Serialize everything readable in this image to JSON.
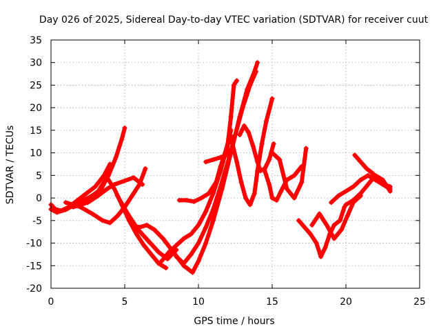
{
  "chart_data": {
    "type": "scatter",
    "title": "Day 026 of 2025, Sidereal Day-to-day VTEC variation (SDTVAR) for receiver cuut",
    "xlabel": "GPS time / hours",
    "ylabel": "SDTVAR / TECUs",
    "xlim": [
      0,
      25
    ],
    "ylim": [
      -20,
      35
    ],
    "xticks": [
      0,
      5,
      10,
      15,
      20,
      25
    ],
    "yticks": [
      -20,
      -15,
      -10,
      -5,
      0,
      5,
      10,
      15,
      20,
      25,
      30,
      35
    ],
    "grid": true,
    "marker": "+",
    "color": "#ff0000",
    "series": [
      {
        "name": "trace-1",
        "x": [
          0,
          0.3,
          0.7,
          1.2,
          1.8,
          2.4,
          3.0,
          3.6,
          4.0
        ],
        "y": [
          -1.5,
          -2.5,
          -2.8,
          -2.0,
          -0.5,
          1.0,
          2.5,
          5.0,
          7.5
        ]
      },
      {
        "name": "trace-2",
        "x": [
          0,
          0.4,
          1.0,
          1.6,
          2.2,
          2.8,
          3.4,
          3.9,
          4.4,
          4.8,
          5.0
        ],
        "y": [
          -2.5,
          -3.2,
          -2.6,
          -1.5,
          -0.5,
          0.5,
          2.0,
          5.0,
          9.0,
          13.0,
          15.5
        ]
      },
      {
        "name": "trace-3",
        "x": [
          1.0,
          2.0,
          2.8,
          3.5,
          4.0,
          4.5,
          5.0,
          5.5,
          6.0,
          6.4
        ],
        "y": [
          -1.0,
          -2.0,
          -3.5,
          -5.0,
          -5.5,
          -4.0,
          -2.0,
          0.5,
          3.0,
          6.5
        ]
      },
      {
        "name": "trace-4",
        "x": [
          1.5,
          2.5,
          3.2,
          3.8,
          4.3,
          5.0,
          5.6,
          6.2
        ],
        "y": [
          -2.0,
          -1.0,
          0.5,
          2.0,
          3.0,
          3.8,
          4.5,
          3.0
        ]
      },
      {
        "name": "trace-5",
        "x": [
          3.3,
          3.8,
          4.3,
          4.8,
          5.3,
          5.8,
          6.3,
          6.8,
          7.3,
          7.8
        ],
        "y": [
          2.0,
          4.5,
          2.0,
          -1.5,
          -5.0,
          -8.0,
          -10.5,
          -12.5,
          -14.5,
          -15.5
        ]
      },
      {
        "name": "trace-6",
        "x": [
          4.5,
          5.2,
          5.9,
          6.6,
          7.3,
          7.9,
          8.5
        ],
        "y": [
          0.5,
          -3.5,
          -7.0,
          -9.5,
          -12.0,
          -13.5,
          -11.5
        ]
      },
      {
        "name": "trace-7",
        "x": [
          5.5,
          6.0,
          6.5,
          7.0,
          7.6,
          8.3,
          9.0,
          9.6,
          10.0,
          10.5,
          11.0,
          11.6,
          12.2,
          12.8,
          13.3,
          13.8,
          14.0
        ],
        "y": [
          -6.0,
          -6.5,
          -6.0,
          -7.0,
          -9.0,
          -12.0,
          -15.0,
          -16.5,
          -14.0,
          -10.0,
          -5.0,
          2.0,
          10.0,
          18.0,
          24.0,
          28.0,
          30.0
        ]
      },
      {
        "name": "trace-8",
        "x": [
          7.5,
          8.0,
          8.5,
          9.0,
          9.5,
          10.0,
          10.5,
          11.0,
          11.5,
          12.0,
          12.3
        ],
        "y": [
          -14.0,
          -12.0,
          -10.5,
          -9.0,
          -8.0,
          -6.0,
          -3.0,
          1.0,
          6.0,
          12.0,
          13.5
        ]
      },
      {
        "name": "trace-9",
        "x": [
          8.5,
          9.0,
          9.5,
          10.0,
          10.5,
          11.0,
          11.5,
          12.0,
          12.5,
          13.0,
          13.5,
          13.9
        ],
        "y": [
          -13.0,
          -14.5,
          -12.5,
          -10.0,
          -6.5,
          -2.5,
          2.5,
          8.0,
          14.0,
          20.0,
          25.0,
          28.0
        ]
      },
      {
        "name": "trace-10",
        "x": [
          8.7,
          9.2,
          9.7,
          10.2,
          10.7,
          11.2,
          11.5,
          11.9,
          12.2
        ],
        "y": [
          -0.5,
          -0.5,
          -0.8,
          0.0,
          1.0,
          3.5,
          7.0,
          11.0,
          15.0
        ]
      },
      {
        "name": "trace-11",
        "x": [
          10.5,
          11.0,
          11.5,
          11.9,
          12.2,
          12.4,
          12.6
        ],
        "y": [
          8.0,
          8.5,
          9.0,
          9.5,
          18.0,
          25.0,
          26.0
        ]
      },
      {
        "name": "trace-12",
        "x": [
          12.3,
          12.6,
          12.9,
          13.2,
          13.5,
          13.8,
          14.0,
          14.3,
          14.6,
          15.0
        ],
        "y": [
          12.0,
          8.0,
          3.5,
          0.0,
          -1.5,
          1.0,
          6.0,
          12.0,
          17.0,
          22.0
        ]
      },
      {
        "name": "trace-13",
        "x": [
          12.8,
          13.1,
          13.4,
          13.7,
          14.0,
          14.2,
          14.5,
          14.8,
          15.1
        ],
        "y": [
          14.0,
          16.0,
          14.5,
          11.5,
          8.0,
          6.0,
          6.5,
          8.5,
          12.0
        ]
      },
      {
        "name": "trace-14",
        "x": [
          14.5,
          14.8,
          15.0,
          15.3,
          15.6,
          16.0,
          16.5,
          17.0
        ],
        "y": [
          6.0,
          3.0,
          0.0,
          -0.5,
          1.5,
          4.0,
          5.0,
          7.0
        ]
      },
      {
        "name": "trace-15",
        "x": [
          15.0,
          15.5,
          16.0,
          16.5,
          17.0,
          17.3
        ],
        "y": [
          10.0,
          8.5,
          2.0,
          0.0,
          3.5,
          11.0
        ]
      },
      {
        "name": "trace-16",
        "x": [
          16.8,
          17.2,
          17.6,
          18.0,
          18.3,
          18.6,
          18.9,
          19.2,
          19.6,
          19.9
        ],
        "y": [
          -5.0,
          -6.5,
          -8.0,
          -10.0,
          -13.0,
          -11.0,
          -8.0,
          -6.0,
          -5.0,
          -2.0
        ]
      },
      {
        "name": "trace-17",
        "x": [
          17.7,
          18.2,
          18.7,
          19.2,
          19.7,
          20.1,
          20.5,
          21.0
        ],
        "y": [
          -6.0,
          -3.5,
          -6.0,
          -9.0,
          -7.0,
          -4.0,
          -1.0,
          0.5
        ]
      },
      {
        "name": "trace-18",
        "x": [
          19.0,
          19.5,
          20.0,
          20.5,
          21.0,
          21.5,
          22.0,
          22.5,
          23.0
        ],
        "y": [
          -1.0,
          0.5,
          1.5,
          2.5,
          4.0,
          5.0,
          4.0,
          3.0,
          2.0
        ]
      },
      {
        "name": "trace-19",
        "x": [
          20.0,
          20.5,
          21.0,
          21.5,
          22.0,
          22.5,
          23.0
        ],
        "y": [
          -1.5,
          -0.5,
          1.0,
          3.0,
          5.0,
          4.0,
          1.5
        ]
      },
      {
        "name": "trace-20",
        "x": [
          20.6,
          21.0,
          21.4,
          21.8,
          22.2,
          22.6,
          23.0
        ],
        "y": [
          9.5,
          8.0,
          6.5,
          5.5,
          4.0,
          3.0,
          2.5
        ]
      }
    ]
  }
}
